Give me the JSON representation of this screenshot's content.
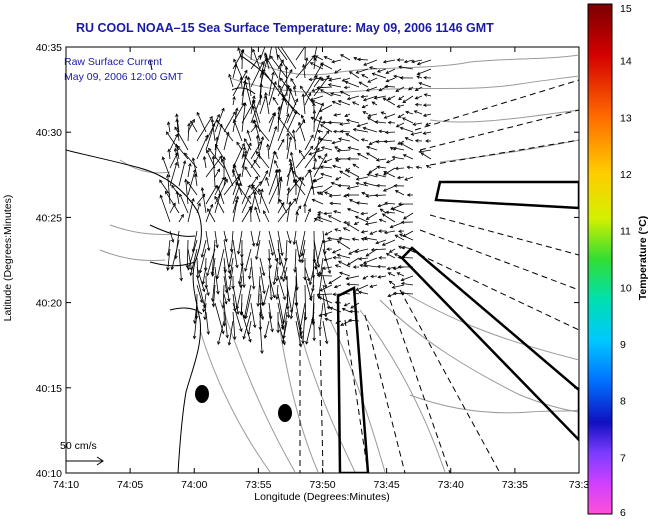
{
  "title": "RU COOL  NOAA–15  Sea Surface Temperature:  May 09, 2006 1146 GMT",
  "annotation_line1": "Raw Surface Current",
  "annotation_line2": "May 09, 2006 12:00 GMT",
  "scale_label": "50 cm/s",
  "x_axis_label": "Longitude (Degrees:Minutes)",
  "y_axis_label": "Latitude (Degrees:Minutes)",
  "colorbar_label": "Temperature (°C)",
  "x_ticks": [
    "74:10",
    "74:05",
    "74:00",
    "73:55",
    "73:50",
    "73:45",
    "73:40",
    "73:35",
    "73:3"
  ],
  "y_ticks": [
    "40:35",
    "40:30",
    "40:25",
    "40:20",
    "40:15",
    "40:10"
  ],
  "colorbar_ticks": [
    "15",
    "14",
    "13",
    "12",
    "11",
    "10",
    "9",
    "8",
    "7",
    "6"
  ],
  "colorbar_range": [
    6,
    15
  ],
  "colors": {
    "title": "#1a1aa6",
    "coast": "#000000",
    "bathymetry": "#9a9a9a",
    "vectors": "#000000"
  }
}
